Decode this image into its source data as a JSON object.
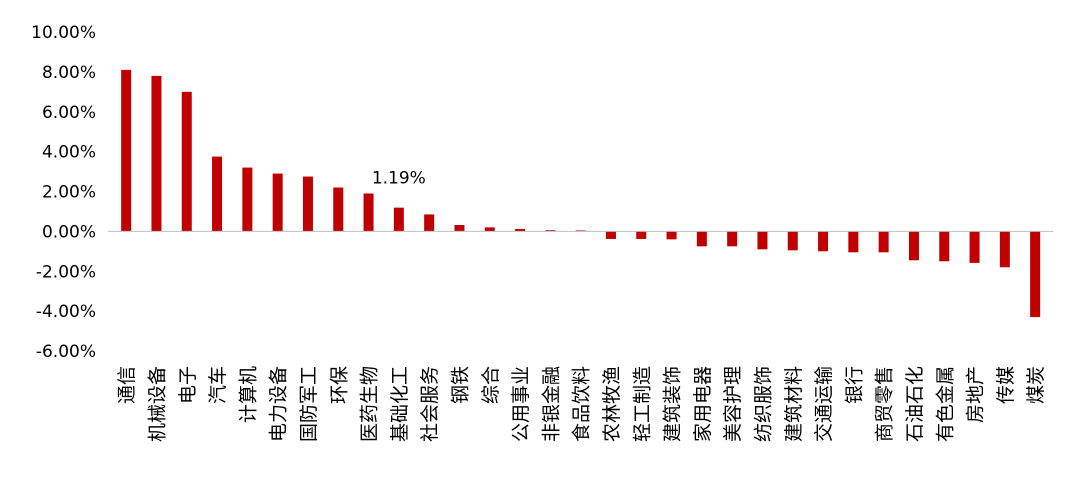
{
  "chart_data": {
    "type": "bar",
    "title": "",
    "xlabel": "",
    "ylabel": "",
    "ylim": [
      -6,
      10
    ],
    "yticks": [
      "10.00%",
      "8.00%",
      "6.00%",
      "4.00%",
      "2.00%",
      "0.00%",
      "-2.00%",
      "-4.00%",
      "-6.00%"
    ],
    "grid": false,
    "legend": "none",
    "bar_color": "#C00000",
    "axis_color": "#BFBFBF",
    "categories": [
      "通信",
      "机械设备",
      "电子",
      "汽车",
      "计算机",
      "电力设备",
      "国防军工",
      "环保",
      "医药生物",
      "基础化工",
      "社会服务",
      "钢铁",
      "综合",
      "公用事业",
      "非银金融",
      "食品饮料",
      "农林牧渔",
      "轻工制造",
      "建筑装饰",
      "家用电器",
      "美容护理",
      "纺织服饰",
      "建筑材料",
      "交通运输",
      "银行",
      "商贸零售",
      "石油石化",
      "有色金属",
      "房地产",
      "传媒",
      "煤炭"
    ],
    "values": [
      8.1,
      7.8,
      7.0,
      3.75,
      3.2,
      2.9,
      2.75,
      2.2,
      1.9,
      1.19,
      0.85,
      0.32,
      0.2,
      0.12,
      0.06,
      0.05,
      -0.38,
      -0.38,
      -0.4,
      -0.75,
      -0.75,
      -0.9,
      -0.95,
      -1.0,
      -1.05,
      -1.05,
      -1.45,
      -1.5,
      -1.58,
      -1.8,
      -4.3
    ],
    "annotations": [
      {
        "category": "基础化工",
        "text": "1.19%"
      }
    ]
  }
}
